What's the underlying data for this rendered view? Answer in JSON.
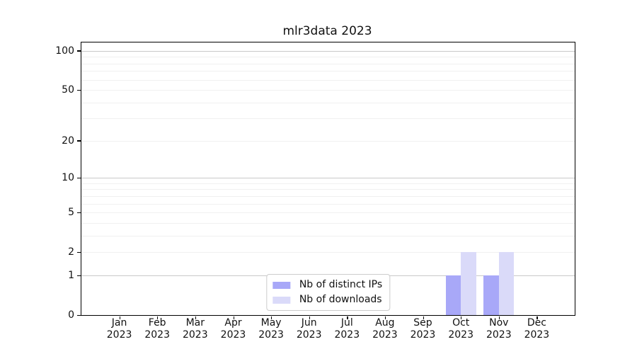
{
  "chart_data": {
    "type": "bar",
    "title": "mlr3data 2023",
    "categories": [
      "Jan",
      "Feb",
      "Mar",
      "Apr",
      "May",
      "Jun",
      "Jul",
      "Aug",
      "Sep",
      "Oct",
      "Nov",
      "Dec"
    ],
    "xtick_year": "2023",
    "series": [
      {
        "name": "Nb of distinct IPs",
        "color": "#a8a8f8",
        "values": [
          0,
          0,
          0,
          0,
          0,
          0,
          0,
          0,
          0,
          1,
          1,
          0
        ]
      },
      {
        "name": "Nb of downloads",
        "color": "#dadaf9",
        "values": [
          0,
          0,
          0,
          0,
          0,
          0,
          0,
          0,
          0,
          2,
          2,
          0
        ]
      }
    ],
    "xlabel": "",
    "ylabel": "",
    "yscale": "log1p",
    "ylim": [
      0,
      116
    ],
    "yticks": [
      0,
      1,
      2,
      5,
      10,
      20,
      50,
      100
    ],
    "grid": true,
    "grid_major_values": [
      1,
      10,
      100
    ],
    "grid_minor_values": [
      2,
      3,
      4,
      5,
      6,
      7,
      8,
      9,
      20,
      30,
      40,
      50,
      60,
      70,
      80,
      90
    ],
    "legend_position": "lower center",
    "bar_group_fraction": 0.8
  },
  "colors": {
    "background": "#ffffff",
    "spine": "#000000",
    "text": "#111111",
    "grid_major": "#c9c9c9",
    "grid_minor": "#f0f0f0",
    "legend_border": "#cccccc"
  }
}
